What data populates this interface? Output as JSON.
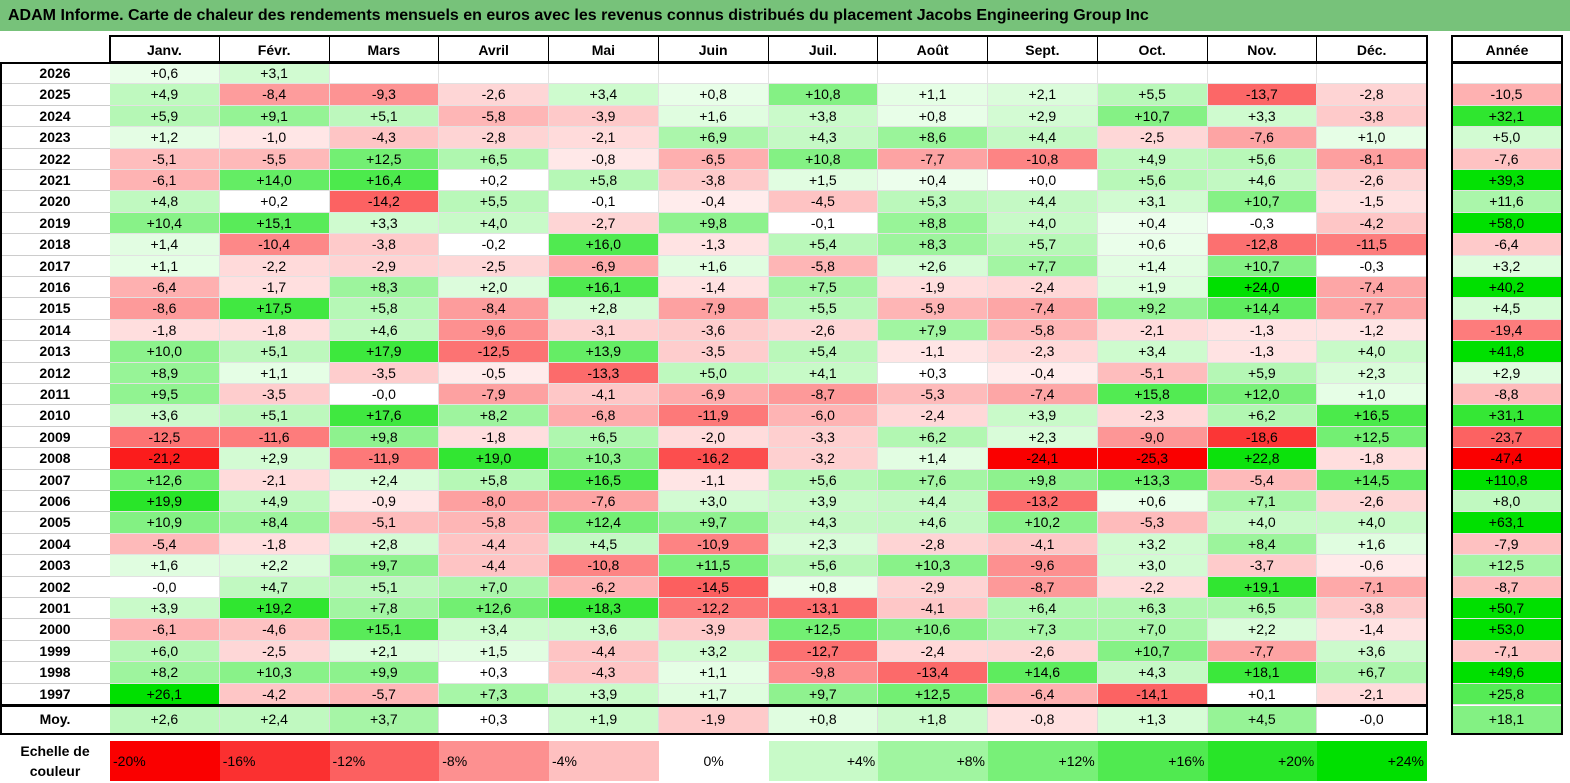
{
  "title": "ADAM Informe. Carte de chaleur des rendements mensuels en euros avec les revenus connus distribués du placement Jacobs Engineering Group Inc",
  "chart_data": {
    "type": "heatmap",
    "title": "ADAM Informe. Carte de chaleur des rendements mensuels en euros avec les revenus connus distribués du placement Jacobs Engineering Group Inc",
    "months": [
      "Janv.",
      "Févr.",
      "Mars",
      "Avril",
      "Mai",
      "Juin",
      "Juil.",
      "Août",
      "Sept.",
      "Oct.",
      "Nov.",
      "Déc."
    ],
    "annual_label": "Année",
    "rows": [
      {
        "year": "2026",
        "values": [
          "+0,6",
          "+3,1",
          "",
          "",
          "",
          "",
          "",
          "",
          "",
          "",
          "",
          ""
        ],
        "annual": ""
      },
      {
        "year": "2025",
        "values": [
          "+4,9",
          "-8,4",
          "-9,3",
          "-2,6",
          "+3,4",
          "+0,8",
          "+10,8",
          "+1,1",
          "+2,1",
          "+5,5",
          "-13,7",
          "-2,8"
        ],
        "annual": "-10,5"
      },
      {
        "year": "2024",
        "values": [
          "+5,9",
          "+9,1",
          "+5,1",
          "-5,8",
          "-3,9",
          "+1,6",
          "+3,8",
          "+0,8",
          "+2,9",
          "+10,7",
          "+3,3",
          "-3,8"
        ],
        "annual": "+32,1"
      },
      {
        "year": "2023",
        "values": [
          "+1,2",
          "-1,0",
          "-4,3",
          "-2,8",
          "-2,1",
          "+6,9",
          "+4,3",
          "+8,6",
          "+4,4",
          "-2,5",
          "-7,6",
          "+1,0"
        ],
        "annual": "+5,0"
      },
      {
        "year": "2022",
        "values": [
          "-5,1",
          "-5,5",
          "+12,5",
          "+6,5",
          "-0,8",
          "-6,5",
          "+10,8",
          "-7,7",
          "-10,8",
          "+4,9",
          "+5,6",
          "-8,1"
        ],
        "annual": "-7,6"
      },
      {
        "year": "2021",
        "values": [
          "-6,1",
          "+14,0",
          "+16,4",
          "+0,2",
          "+5,8",
          "-3,8",
          "+1,5",
          "+0,4",
          "+0,0",
          "+5,6",
          "+4,6",
          "-2,6"
        ],
        "annual": "+39,3"
      },
      {
        "year": "2020",
        "values": [
          "+4,8",
          "+0,2",
          "-14,2",
          "+5,5",
          "-0,1",
          "-0,4",
          "-4,5",
          "+5,3",
          "+4,4",
          "+3,1",
          "+10,7",
          "-1,5"
        ],
        "annual": "+11,6"
      },
      {
        "year": "2019",
        "values": [
          "+10,4",
          "+15,1",
          "+3,3",
          "+4,0",
          "-2,7",
          "+9,8",
          "-0,1",
          "+8,8",
          "+4,0",
          "+0,4",
          "-0,3",
          "-4,2"
        ],
        "annual": "+58,0"
      },
      {
        "year": "2018",
        "values": [
          "+1,4",
          "-10,4",
          "-3,8",
          "-0,2",
          "+16,0",
          "-1,3",
          "+5,4",
          "+8,3",
          "+5,7",
          "+0,6",
          "-12,8",
          "-11,5"
        ],
        "annual": "-6,4"
      },
      {
        "year": "2017",
        "values": [
          "+1,1",
          "-2,2",
          "-2,9",
          "-2,5",
          "-6,9",
          "+1,6",
          "-5,8",
          "+2,6",
          "+7,7",
          "+1,4",
          "+10,7",
          "-0,3"
        ],
        "annual": "+3,2"
      },
      {
        "year": "2016",
        "values": [
          "-6,4",
          "-1,7",
          "+8,3",
          "+2,0",
          "+16,1",
          "-1,4",
          "+7,5",
          "-1,9",
          "-2,4",
          "+1,9",
          "+24,0",
          "-7,4"
        ],
        "annual": "+40,2"
      },
      {
        "year": "2015",
        "values": [
          "-8,6",
          "+17,5",
          "+5,8",
          "-8,4",
          "+2,8",
          "-7,9",
          "+5,5",
          "-5,9",
          "-7,4",
          "+9,2",
          "+14,4",
          "-7,7"
        ],
        "annual": "+4,5"
      },
      {
        "year": "2014",
        "values": [
          "-1,8",
          "-1,8",
          "+4,6",
          "-9,6",
          "-3,1",
          "-3,6",
          "-2,6",
          "+7,9",
          "-5,8",
          "-2,1",
          "-1,3",
          "-1,2"
        ],
        "annual": "-19,4"
      },
      {
        "year": "2013",
        "values": [
          "+10,0",
          "+5,1",
          "+17,9",
          "-12,5",
          "+13,9",
          "-3,5",
          "+5,4",
          "-1,1",
          "-2,3",
          "+3,4",
          "-1,3",
          "+4,0"
        ],
        "annual": "+41,8"
      },
      {
        "year": "2012",
        "values": [
          "+8,9",
          "+1,1",
          "-3,5",
          "-0,5",
          "-13,3",
          "+5,0",
          "+4,1",
          "+0,3",
          "-0,4",
          "-5,1",
          "+5,9",
          "+2,3"
        ],
        "annual": "+2,9"
      },
      {
        "year": "2011",
        "values": [
          "+9,5",
          "-3,5",
          "-0,0",
          "-7,9",
          "-4,1",
          "-6,9",
          "-8,7",
          "-5,3",
          "-7,4",
          "+15,8",
          "+12,0",
          "+1,0"
        ],
        "annual": "-8,8"
      },
      {
        "year": "2010",
        "values": [
          "+3,6",
          "+5,1",
          "+17,6",
          "+8,2",
          "-6,8",
          "-11,9",
          "-6,0",
          "-2,4",
          "+3,9",
          "-2,3",
          "+6,2",
          "+16,5"
        ],
        "annual": "+31,1"
      },
      {
        "year": "2009",
        "values": [
          "-12,5",
          "-11,6",
          "+9,8",
          "-1,8",
          "+6,5",
          "-2,0",
          "-3,3",
          "+6,2",
          "+2,3",
          "-9,0",
          "-18,6",
          "+12,5"
        ],
        "annual": "-23,7"
      },
      {
        "year": "2008",
        "values": [
          "-21,2",
          "+2,9",
          "-11,9",
          "+19,0",
          "+10,3",
          "-16,2",
          "-3,2",
          "+1,4",
          "-24,1",
          "-25,3",
          "+22,8",
          "-1,8"
        ],
        "annual": "-47,4"
      },
      {
        "year": "2007",
        "values": [
          "+12,6",
          "-2,1",
          "+2,4",
          "+5,8",
          "+16,5",
          "-1,1",
          "+5,6",
          "+7,6",
          "+9,8",
          "+13,3",
          "-5,4",
          "+14,5"
        ],
        "annual": "+110,8"
      },
      {
        "year": "2006",
        "values": [
          "+19,9",
          "+4,9",
          "-0,9",
          "-8,0",
          "-7,6",
          "+3,0",
          "+3,9",
          "+4,4",
          "-13,2",
          "+0,6",
          "+7,1",
          "-2,6"
        ],
        "annual": "+8,0"
      },
      {
        "year": "2005",
        "values": [
          "+10,9",
          "+8,4",
          "-5,1",
          "-5,8",
          "+12,4",
          "+9,7",
          "+4,3",
          "+4,6",
          "+10,2",
          "-5,3",
          "+4,0",
          "+4,0"
        ],
        "annual": "+63,1"
      },
      {
        "year": "2004",
        "values": [
          "-5,4",
          "-1,8",
          "+2,8",
          "-4,4",
          "+4,5",
          "-10,9",
          "+2,3",
          "-2,8",
          "-4,1",
          "+3,2",
          "+8,4",
          "+1,6"
        ],
        "annual": "-7,9"
      },
      {
        "year": "2003",
        "values": [
          "+1,6",
          "+2,2",
          "+9,7",
          "-4,4",
          "-10,8",
          "+11,5",
          "+5,6",
          "+10,3",
          "-9,6",
          "+3,0",
          "-3,7",
          "-0,6"
        ],
        "annual": "+12,5"
      },
      {
        "year": "2002",
        "values": [
          "-0,0",
          "+4,7",
          "+5,1",
          "+7,0",
          "-6,2",
          "-14,5",
          "+0,8",
          "-2,9",
          "-8,7",
          "-2,2",
          "+19,1",
          "-7,1"
        ],
        "annual": "-8,7"
      },
      {
        "year": "2001",
        "values": [
          "+3,9",
          "+19,2",
          "+7,8",
          "+12,6",
          "+18,3",
          "-12,2",
          "-13,1",
          "-4,1",
          "+6,4",
          "+6,3",
          "+6,5",
          "-3,8"
        ],
        "annual": "+50,7"
      },
      {
        "year": "2000",
        "values": [
          "-6,1",
          "-4,6",
          "+15,1",
          "+3,4",
          "+3,6",
          "-3,9",
          "+12,5",
          "+10,6",
          "+7,3",
          "+7,0",
          "+2,2",
          "-1,4"
        ],
        "annual": "+53,0"
      },
      {
        "year": "1999",
        "values": [
          "+6,0",
          "-2,5",
          "+2,1",
          "+1,5",
          "-4,4",
          "+3,2",
          "-12,7",
          "-2,4",
          "-2,6",
          "+10,7",
          "-7,7",
          "+3,6"
        ],
        "annual": "-7,1"
      },
      {
        "year": "1998",
        "values": [
          "+8,2",
          "+10,3",
          "+9,9",
          "+0,3",
          "-4,3",
          "+1,1",
          "-9,8",
          "-13,4",
          "+14,6",
          "+4,3",
          "+18,1",
          "+6,7"
        ],
        "annual": "+49,6"
      },
      {
        "year": "1997",
        "values": [
          "+26,1",
          "-4,2",
          "-5,7",
          "+7,3",
          "+3,9",
          "+1,7",
          "+9,7",
          "+12,5",
          "-6,4",
          "-14,1",
          "+0,1",
          "-2,1"
        ],
        "annual": "+25,8"
      }
    ],
    "average": {
      "label": "Moy.",
      "values": [
        "+2,6",
        "+2,4",
        "+3,7",
        "+0,3",
        "+1,9",
        "-1,9",
        "+0,8",
        "+1,8",
        "-0,8",
        "+1,3",
        "+4,5",
        "-0,0"
      ],
      "annual": "+18,1"
    },
    "scale": {
      "label_line1": "Echelle de",
      "label_line2": "couleur",
      "stops": [
        "-20%",
        "-16%",
        "-12%",
        "-8%",
        "-4%",
        "0%",
        "+4%",
        "+8%",
        "+12%",
        "+16%",
        "+20%",
        "+24%"
      ],
      "stop_values": [
        -20,
        -16,
        -12,
        -8,
        -4,
        0,
        4,
        8,
        12,
        16,
        20,
        24
      ]
    },
    "colors": {
      "negative_max": "#ff0000",
      "neutral": "#ffffff",
      "positive_max": "#00e000",
      "title_bg": "#77c27a"
    }
  }
}
